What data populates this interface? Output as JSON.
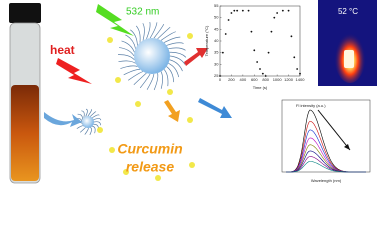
{
  "labels": {
    "laser": "532 nm",
    "heat": "heat",
    "release_line1": "Curcumin",
    "release_line2": "release",
    "thermal_temp": "52 °C"
  },
  "temperature_plot": {
    "x_label": "Time (s)",
    "y_label": "Temperature (°C)",
    "xlim": [
      0,
      1400
    ],
    "ylim": [
      25,
      55
    ],
    "xticks": [
      0,
      200,
      400,
      600,
      800,
      1000,
      1200,
      1400
    ],
    "yticks": [
      25,
      30,
      35,
      40,
      45,
      50,
      55
    ],
    "x": [
      0,
      50,
      100,
      150,
      200,
      250,
      300,
      400,
      500,
      550,
      600,
      650,
      700,
      750,
      800,
      850,
      900,
      950,
      1000,
      1100,
      1200,
      1250,
      1300,
      1350,
      1400
    ],
    "y": [
      25,
      35,
      43,
      49,
      52,
      53,
      53,
      53,
      53,
      44,
      36,
      31,
      28,
      26,
      25,
      35,
      44,
      50,
      52,
      53,
      53,
      42,
      33,
      28,
      26
    ]
  },
  "fluorescence_plot": {
    "x_label": "Wavelength (nm)",
    "y_label": "Fl intensity (a.u.)",
    "curve_peaks": [
      1.0,
      0.82,
      0.68,
      0.55,
      0.44,
      0.34,
      0.25,
      0.17
    ],
    "curve_colors": [
      "#000000",
      "#d01010",
      "#1030d0",
      "#c010c0",
      "#808000",
      "#000080",
      "#800080",
      "#008080"
    ]
  }
}
